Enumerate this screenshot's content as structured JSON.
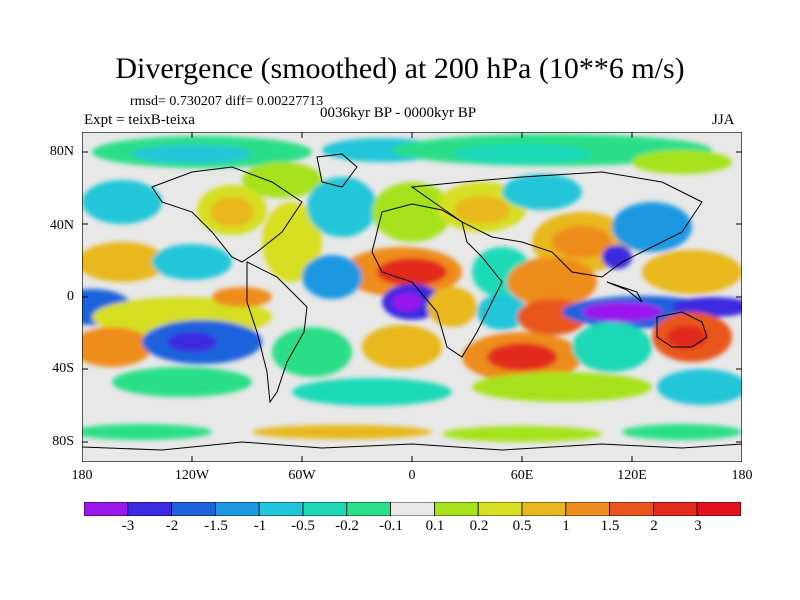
{
  "title": "Divergence (smoothed) at 200 hPa (10**6 m/s)",
  "stats": "rmsd= 0.730207 diff= 0.00227713",
  "experiment": "Expt = teixB-teixa",
  "period": "0036kyr BP - 0000kyr BP",
  "season": "JJA",
  "latitude_labels": [
    "80N",
    "40N",
    "0",
    "40S",
    "80S"
  ],
  "longitude_labels": [
    "180",
    "120W",
    "60W",
    "0",
    "60E",
    "120E",
    "180"
  ],
  "colorbar": {
    "labels": [
      "-3",
      "-2",
      "-1.5",
      "-1",
      "-0.5",
      "-0.2",
      "-0.1",
      "0.1",
      "0.2",
      "0.5",
      "1",
      "1.5",
      "2",
      "3"
    ],
    "colors": [
      "#9a18ee",
      "#3b2ae0",
      "#1e62dc",
      "#1c98e3",
      "#21c6d8",
      "#1ed9b8",
      "#2bde88",
      "#e8e8e8",
      "#a6e21c",
      "#d6df22",
      "#e8b81f",
      "#ee8c1e",
      "#e8561c",
      "#e22a1d",
      "#e0101c"
    ]
  },
  "background_color": "#e8e8e8"
}
